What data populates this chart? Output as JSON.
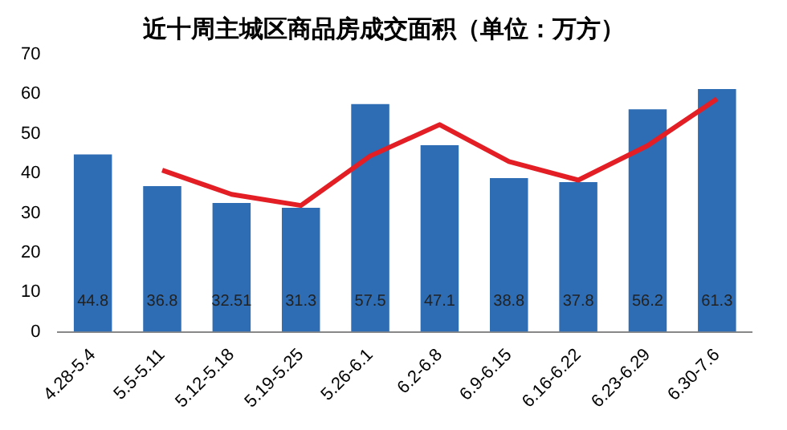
{
  "chart_data": {
    "type": "bar",
    "title": "近十周主城区商品房成交面积（单位：万方）",
    "categories": [
      "4.28-5.4",
      "5.5-5.11",
      "5.12-5.18",
      "5.19-5.25",
      "5.26-6.1",
      "6.2-6.8",
      "6.9-6.15",
      "6.16-6.22",
      "6.23-6.29",
      "6.30-7.6"
    ],
    "series": [
      {
        "color": "#2e6db4",
        "values": [
          44.8,
          36.8,
          32.51,
          31.3,
          57.5,
          47.1,
          38.8,
          37.8,
          56.2,
          61.3
        ],
        "data_labels": true
      },
      {
        "type": "line",
        "color": "#e31e24",
        "values": [
          null,
          40.8,
          34.7,
          31.9,
          44.4,
          52.3,
          43,
          38.3,
          47,
          58.8
        ]
      }
    ],
    "ylim": [
      0,
      70
    ],
    "yticks": [
      0,
      10,
      20,
      30,
      40,
      50,
      60,
      70
    ],
    "grid": false,
    "legend": false
  }
}
